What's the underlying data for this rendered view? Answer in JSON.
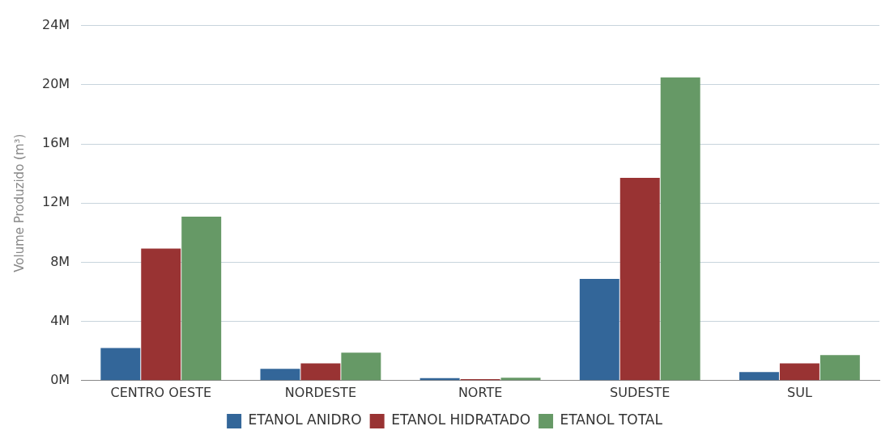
{
  "chart_data": {
    "type": "bar",
    "ylabel": "Volume Produzido (m³)",
    "categories": [
      "CENTRO OESTE",
      "NORDESTE",
      "NORTE",
      "SUDESTE",
      "SUL"
    ],
    "series": [
      {
        "name": "ETANOL ANIDRO",
        "color": "#336699",
        "values": [
          2200000,
          790000,
          160000,
          6880000,
          580000
        ]
      },
      {
        "name": "ETANOL HIDRATADO",
        "color": "#993333",
        "values": [
          8930000,
          1160000,
          100000,
          13700000,
          1160000
        ]
      },
      {
        "name": "ETANOL TOTAL",
        "color": "#669966",
        "values": [
          11080000,
          1890000,
          200000,
          20500000,
          1730000
        ]
      }
    ],
    "ylim": [
      0,
      24000000
    ],
    "yticks": [
      {
        "value": 0,
        "label": "0M"
      },
      {
        "value": 4000000,
        "label": "4M"
      },
      {
        "value": 8000000,
        "label": "8M"
      },
      {
        "value": 12000000,
        "label": "12M"
      },
      {
        "value": 16000000,
        "label": "16M"
      },
      {
        "value": 20000000,
        "label": "20M"
      },
      {
        "value": 24000000,
        "label": "24M"
      }
    ],
    "grid": "y",
    "legend": "bottom"
  }
}
